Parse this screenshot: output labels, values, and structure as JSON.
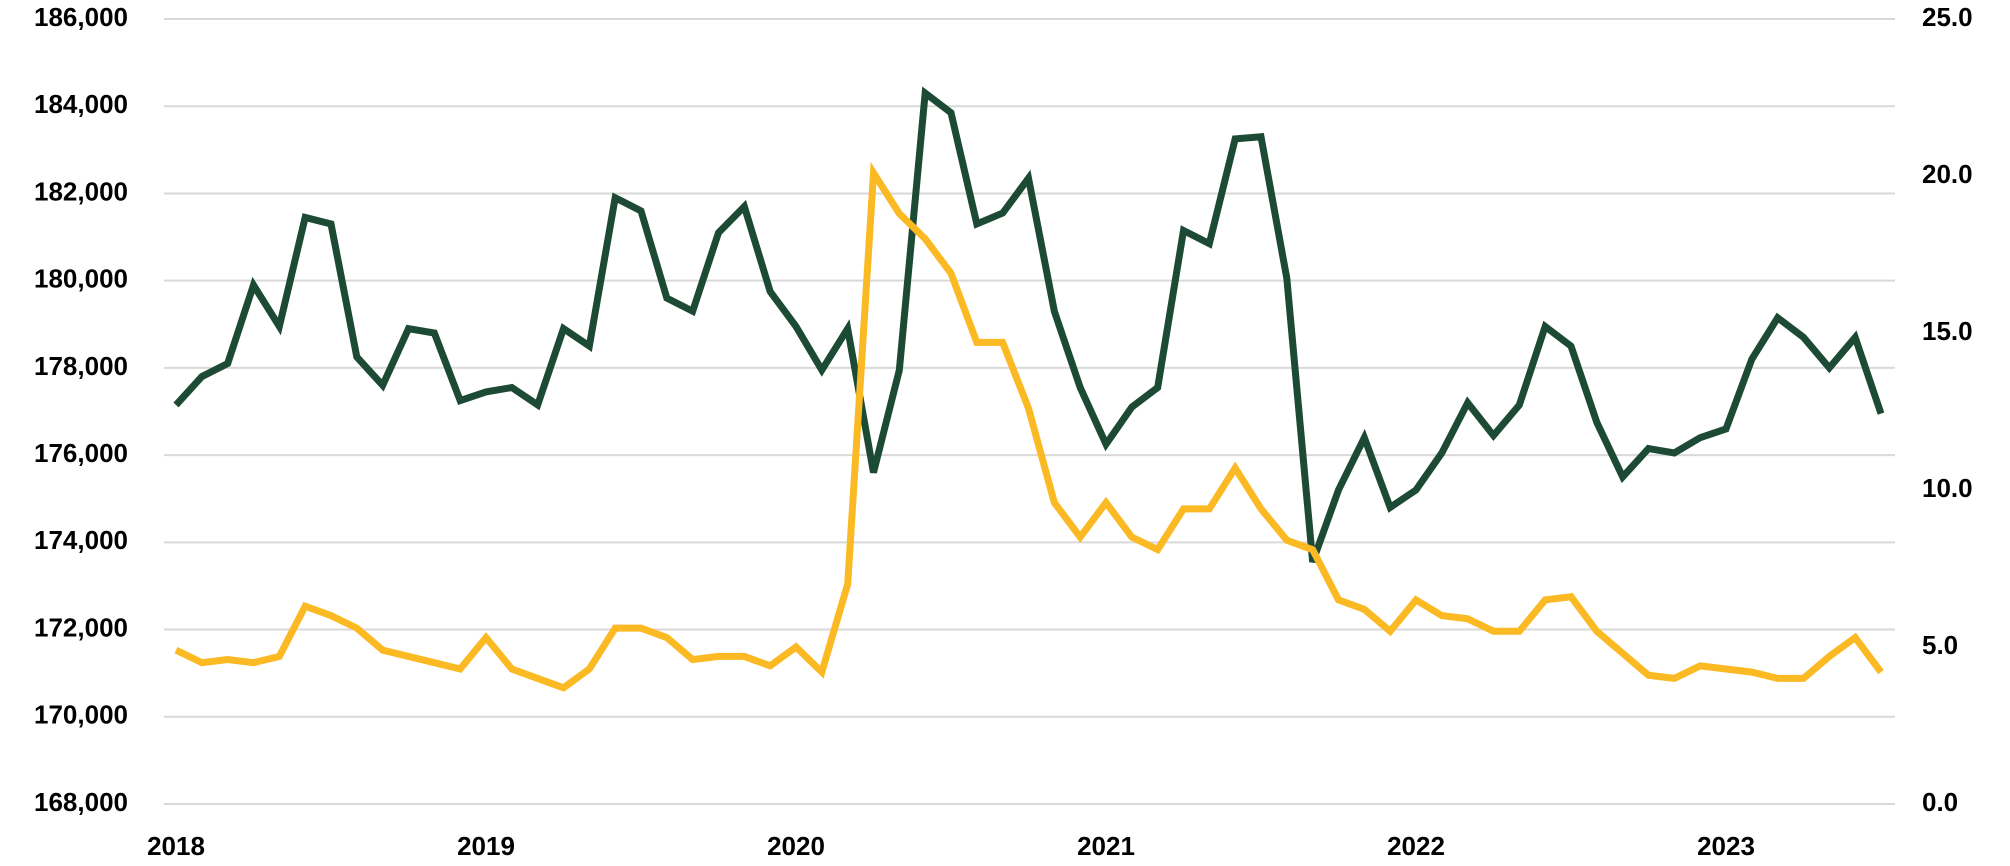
{
  "chart_data": {
    "type": "line",
    "categories": [
      "2018",
      null,
      null,
      null,
      null,
      null,
      null,
      null,
      null,
      null,
      null,
      null,
      "2019",
      null,
      null,
      null,
      null,
      null,
      null,
      null,
      null,
      null,
      null,
      null,
      "2020",
      null,
      null,
      null,
      null,
      null,
      null,
      null,
      null,
      null,
      null,
      null,
      "2021",
      null,
      null,
      null,
      null,
      null,
      null,
      null,
      null,
      null,
      null,
      null,
      "2022",
      null,
      null,
      null,
      null,
      null,
      null,
      null,
      null,
      null,
      null,
      null,
      "2023",
      null,
      null,
      null,
      null,
      null,
      null
    ],
    "series": [
      {
        "color": "#1d4a35",
        "axis": "y",
        "values": [
          177150,
          177800,
          178100,
          179900,
          178950,
          181450,
          181300,
          178250,
          177600,
          178900,
          178800,
          177250,
          177450,
          177550,
          177150,
          178900,
          178500,
          181900,
          181600,
          179600,
          179300,
          181100,
          181700,
          179750,
          178950,
          177950,
          178900,
          175600,
          177950,
          184300,
          183850,
          181300,
          181550,
          182350,
          179300,
          177550,
          176250,
          177100,
          177550,
          181150,
          180850,
          183250,
          183300,
          180050,
          173550,
          175200,
          176400,
          174800,
          175200,
          176050,
          177200,
          176450,
          177150,
          178950,
          178500,
          176750,
          175500,
          176150,
          176050,
          176400,
          176600,
          178200,
          179150,
          178700,
          178000,
          178700,
          176950
        ]
      },
      {
        "color": "#fbb923",
        "axis": "y2",
        "values": [
          4.9,
          4.5,
          4.6,
          4.5,
          4.7,
          6.3,
          6.0,
          5.6,
          4.9,
          4.7,
          4.5,
          4.3,
          5.3,
          4.3,
          4.0,
          3.7,
          4.3,
          5.6,
          5.6,
          5.3,
          4.6,
          4.7,
          4.7,
          4.4,
          5.0,
          4.2,
          7.0,
          20.1,
          18.8,
          18.0,
          16.9,
          14.7,
          14.7,
          12.6,
          9.6,
          8.5,
          9.6,
          8.5,
          8.1,
          9.4,
          9.4,
          10.7,
          9.4,
          8.4,
          8.1,
          6.5,
          6.2,
          5.5,
          6.5,
          6.0,
          5.9,
          5.5,
          5.5,
          6.5,
          6.6,
          5.5,
          4.8,
          4.1,
          4.0,
          4.4,
          4.3,
          4.2,
          4.0,
          4.0,
          4.7,
          5.3,
          4.2
        ]
      }
    ],
    "ylim": [
      168000,
      186000
    ],
    "yticks": [
      {
        "value": 168000,
        "label": "168,000"
      },
      {
        "value": 170000,
        "label": "170,000"
      },
      {
        "value": 172000,
        "label": "172,000"
      },
      {
        "value": 174000,
        "label": "174,000"
      },
      {
        "value": 176000,
        "label": "176,000"
      },
      {
        "value": 178000,
        "label": "178,000"
      },
      {
        "value": 180000,
        "label": "180,000"
      },
      {
        "value": 182000,
        "label": "182,000"
      },
      {
        "value": 184000,
        "label": "184,000"
      },
      {
        "value": 186000,
        "label": "186,000"
      }
    ],
    "y2lim": [
      0,
      25
    ],
    "y2ticks": [
      {
        "value": 0,
        "label": "0.0"
      },
      {
        "value": 5,
        "label": "5.0"
      },
      {
        "value": 10,
        "label": "10.0"
      },
      {
        "value": 15,
        "label": "15.0"
      },
      {
        "value": 20,
        "label": "20.0"
      },
      {
        "value": 25,
        "label": "25.0"
      }
    ],
    "grid": true
  }
}
